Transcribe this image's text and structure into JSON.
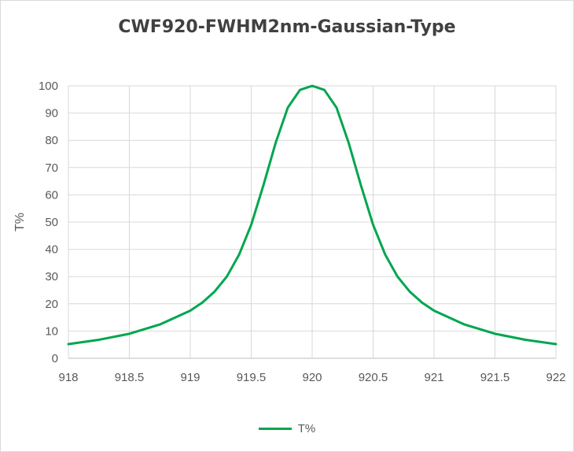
{
  "chart_data": {
    "type": "line",
    "title": "CWF920-FWHM2nm-Gaussian-Type",
    "xlabel": "",
    "ylabel": "T%",
    "xlim": [
      918,
      922
    ],
    "ylim": [
      0,
      100
    ],
    "x_ticks": [
      918,
      918.5,
      919,
      919.5,
      920,
      920.5,
      921,
      921.5,
      922
    ],
    "x_tick_labels": [
      "918",
      "918.5",
      "919",
      "919.5",
      "920",
      "920.5",
      "921",
      "921.5",
      "922"
    ],
    "y_ticks": [
      0,
      10,
      20,
      30,
      40,
      50,
      60,
      70,
      80,
      90,
      100
    ],
    "grid": true,
    "legend_position": "bottom",
    "series": [
      {
        "name": "T%",
        "color": "#00a64f",
        "x": [
          918,
          918.25,
          918.5,
          918.75,
          919,
          919.1,
          919.2,
          919.3,
          919.4,
          919.5,
          919.6,
          919.7,
          919.8,
          919.9,
          920,
          920.1,
          920.2,
          920.3,
          920.4,
          920.5,
          920.6,
          920.7,
          920.8,
          920.9,
          921,
          921.25,
          921.5,
          921.75,
          922
        ],
        "y": [
          5.2,
          6.8,
          9.0,
          12.4,
          17.5,
          20.5,
          24.5,
          30.0,
          38.0,
          49.0,
          63.5,
          79.0,
          92.0,
          98.5,
          100,
          98.5,
          92.0,
          79.0,
          63.5,
          49.0,
          38.0,
          30.0,
          24.5,
          20.5,
          17.5,
          12.4,
          9.0,
          6.8,
          5.2
        ]
      }
    ]
  }
}
